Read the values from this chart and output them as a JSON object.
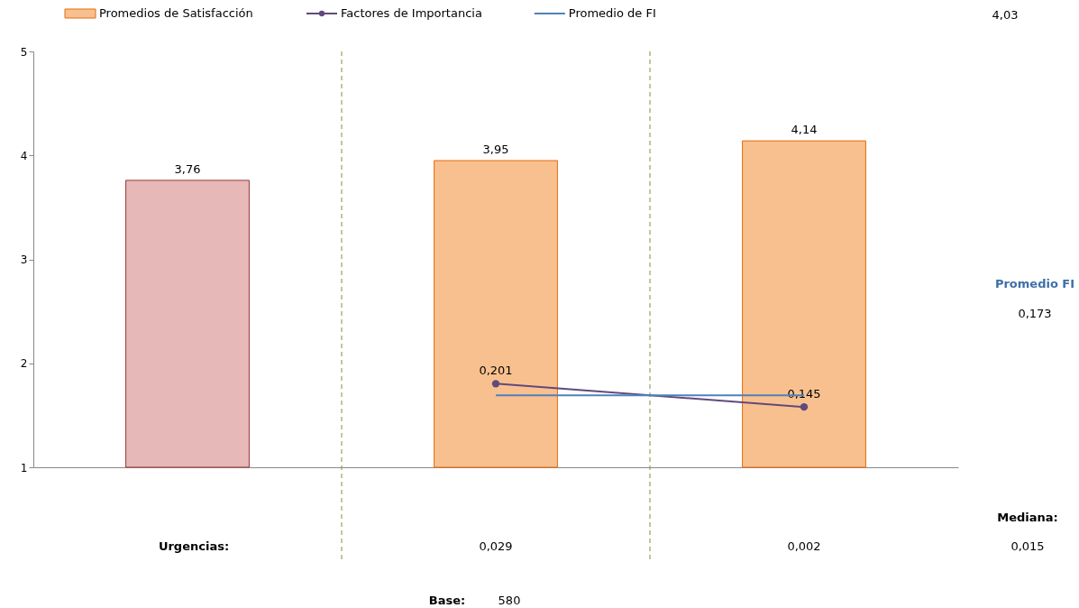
{
  "chart_data": {
    "type": "bar",
    "categories": [
      null,
      null,
      null
    ],
    "series": [
      {
        "name": "Promedios de Satisfacción",
        "color": "#f9c08f",
        "colors": [
          "#e6b8b8",
          "#f9c08f",
          "#f9c08f"
        ],
        "values": [
          3.76,
          3.95,
          4.14
        ],
        "value_labels": [
          "3,76",
          "3,95",
          "4,14"
        ]
      },
      {
        "name": "Factores de Importancia",
        "type": "line",
        "axis": "y2",
        "color": "#604a7b",
        "marker": "circle",
        "line_style": "solid",
        "values": [
          null,
          0.201,
          0.145
        ],
        "value_labels": [
          null,
          "0,201",
          "0,145"
        ]
      },
      {
        "name": "Promedio de FI",
        "type": "line",
        "axis": "y2",
        "color": "#4f81bd",
        "marker": "none",
        "line_style": "solid",
        "values": [
          null,
          0.173,
          0.173
        ]
      }
    ],
    "ylim": [
      1,
      5
    ],
    "yticks": [
      1,
      2,
      3,
      4,
      5
    ],
    "y2lim": [
      0,
      1
    ],
    "tick_labels": "y",
    "grid": false,
    "legend": "top",
    "annotations": [
      "4,03",
      "Promedio FI",
      "0,173",
      "Mediana:",
      "0,015",
      "Urgencias:",
      "0,029",
      "0,002",
      "Base:",
      "580"
    ]
  }
}
